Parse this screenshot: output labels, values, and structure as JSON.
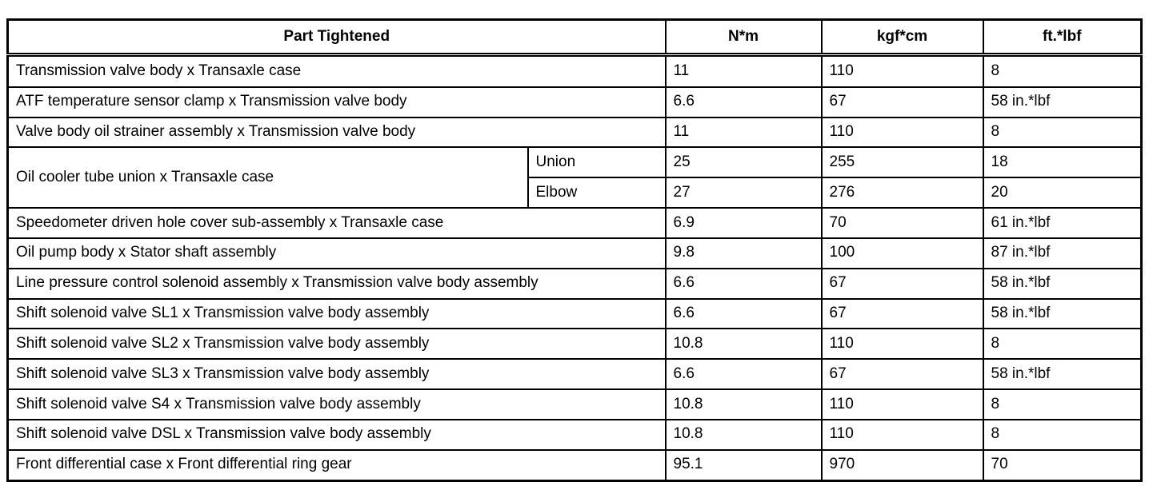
{
  "colors": {
    "border": "#000000",
    "background": "#ffffff",
    "text": "#000000"
  },
  "table": {
    "headers": [
      "Part Tightened",
      "N*m",
      "kgf*cm",
      "ft.*lbf"
    ],
    "rows": [
      {
        "part": "Transmission valve body x Transaxle case",
        "values": [
          "11",
          "110",
          "8"
        ]
      },
      {
        "part": "ATF temperature sensor clamp x Transmission valve body",
        "values": [
          "6.6",
          "67",
          "58 in.*lbf"
        ]
      },
      {
        "part": "Valve body oil strainer assembly x Transmission valve body",
        "values": [
          "11",
          "110",
          "8"
        ]
      },
      {
        "part": "Oil cooler tube union x Transaxle case",
        "subs": [
          {
            "label": "Union",
            "values": [
              "25",
              "255",
              "18"
            ]
          },
          {
            "label": "Elbow",
            "values": [
              "27",
              "276",
              "20"
            ]
          }
        ]
      },
      {
        "part": "Speedometer driven hole cover sub-assembly x Transaxle case",
        "values": [
          "6.9",
          "70",
          "61 in.*lbf"
        ]
      },
      {
        "part": "Oil pump body x Stator shaft assembly",
        "values": [
          "9.8",
          "100",
          "87 in.*lbf"
        ]
      },
      {
        "part": "Line pressure control solenoid assembly x Transmission valve body assembly",
        "values": [
          "6.6",
          "67",
          "58 in.*lbf"
        ]
      },
      {
        "part": "Shift solenoid valve SL1 x Transmission valve body assembly",
        "values": [
          "6.6",
          "67",
          "58 in.*lbf"
        ]
      },
      {
        "part": "Shift solenoid valve SL2 x Transmission valve body assembly",
        "values": [
          "10.8",
          "110",
          "8"
        ]
      },
      {
        "part": "Shift solenoid valve SL3 x Transmission valve body assembly",
        "values": [
          "6.6",
          "67",
          "58 in.*lbf"
        ]
      },
      {
        "part": "Shift solenoid valve S4 x Transmission valve body assembly",
        "values": [
          "10.8",
          "110",
          "8"
        ]
      },
      {
        "part": "Shift solenoid valve DSL x Transmission valve body assembly",
        "values": [
          "10.8",
          "110",
          "8"
        ]
      },
      {
        "part": "Front differential case x Front differential ring gear",
        "values": [
          "95.1",
          "970",
          "70"
        ]
      }
    ]
  }
}
